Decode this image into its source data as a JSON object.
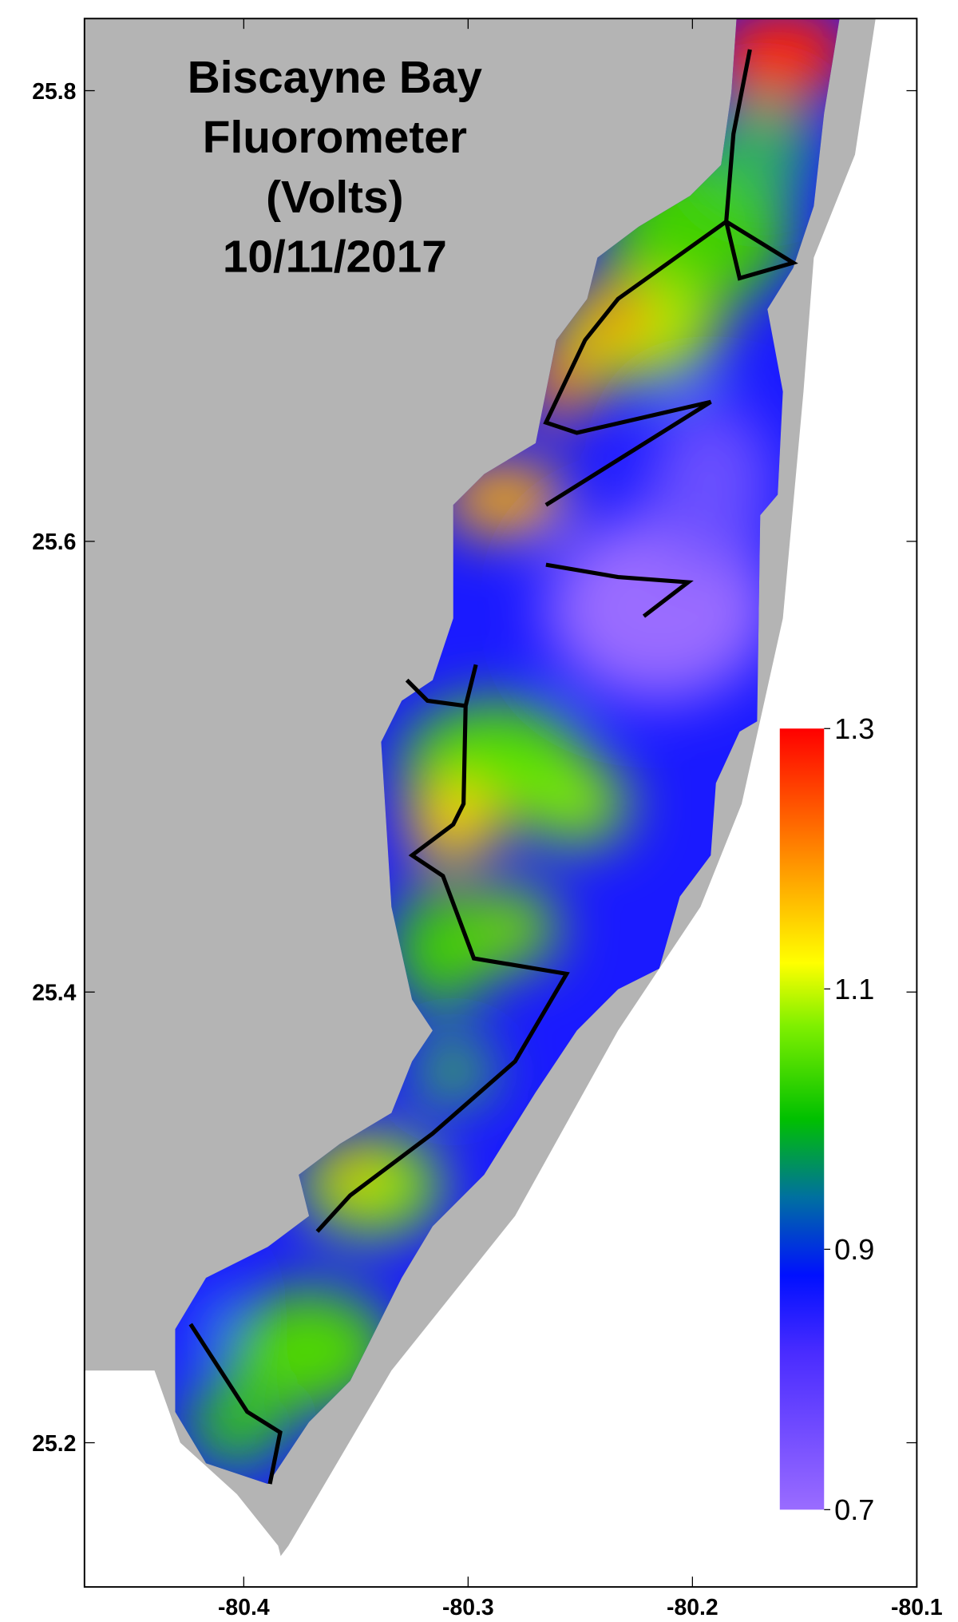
{
  "chart_data": {
    "type": "map",
    "title_lines": [
      "Biscayne Bay",
      "Fluorometer",
      "(Volts)",
      "10/11/2017"
    ],
    "xlim": [
      -80.471,
      -80.1
    ],
    "ylim": [
      25.136,
      25.832
    ],
    "xticks": [
      -80.4,
      -80.3,
      -80.2,
      -80.1
    ],
    "yticks": [
      25.2,
      25.4,
      25.6,
      25.8
    ],
    "colorbar": {
      "lim": [
        0.7,
        1.3
      ],
      "ticks": [
        0.7,
        0.9,
        1.1,
        1.3
      ]
    }
  }
}
